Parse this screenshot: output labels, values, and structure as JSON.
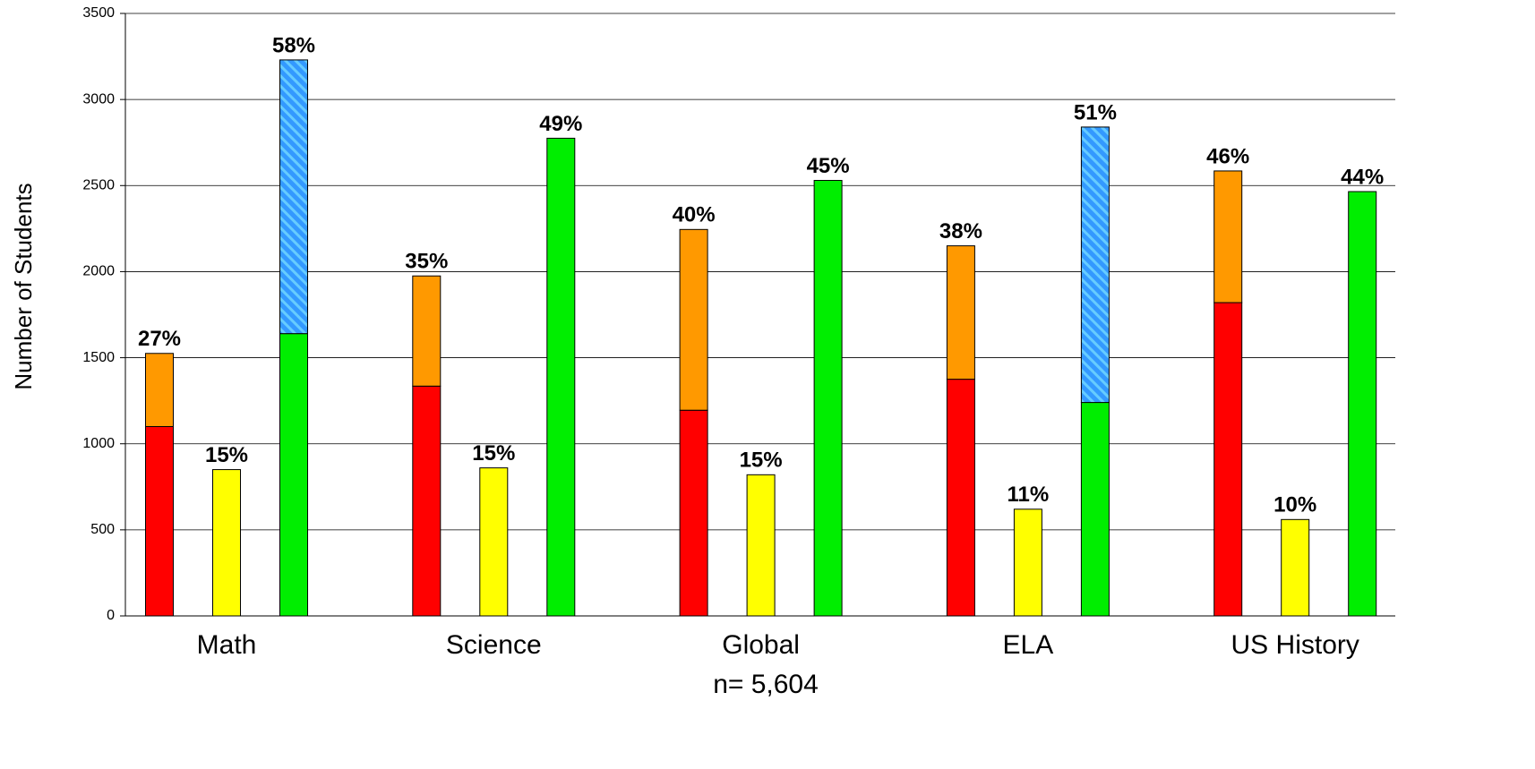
{
  "chart_data": {
    "type": "bar",
    "y_label": "Number of Students",
    "x_label": "n= 5,604",
    "categories": [
      "Math",
      "Science",
      "Global",
      "ELA",
      "US History"
    ],
    "series": [
      {
        "color": "#ff0000",
        "group": 0,
        "values": [
          1100,
          1335,
          1195,
          1375,
          1820
        ]
      },
      {
        "color": "#ff9900",
        "group": 0,
        "values": [
          425,
          640,
          1050,
          775,
          765
        ]
      },
      {
        "color": "#ffff00",
        "group": 1,
        "values": [
          850,
          860,
          820,
          620,
          560
        ]
      },
      {
        "color": "#00ee00",
        "group": 2,
        "values": [
          1640,
          2775,
          2530,
          1240,
          2465
        ]
      },
      {
        "color": "#3399ff",
        "hatch": true,
        "group": 2,
        "values": [
          1590,
          null,
          null,
          1600,
          null
        ]
      }
    ],
    "bar_labels": [
      [
        "27%",
        "35%",
        "40%",
        "38%",
        "46%"
      ],
      [
        "15%",
        "15%",
        "15%",
        "11%",
        "10%"
      ],
      [
        "58%",
        "49%",
        "45%",
        "51%",
        "44%"
      ]
    ],
    "ylim": [
      0,
      3500
    ],
    "yticks": [
      0,
      500,
      1000,
      1500,
      2000,
      2500,
      3000,
      3500
    ],
    "grid": true
  }
}
